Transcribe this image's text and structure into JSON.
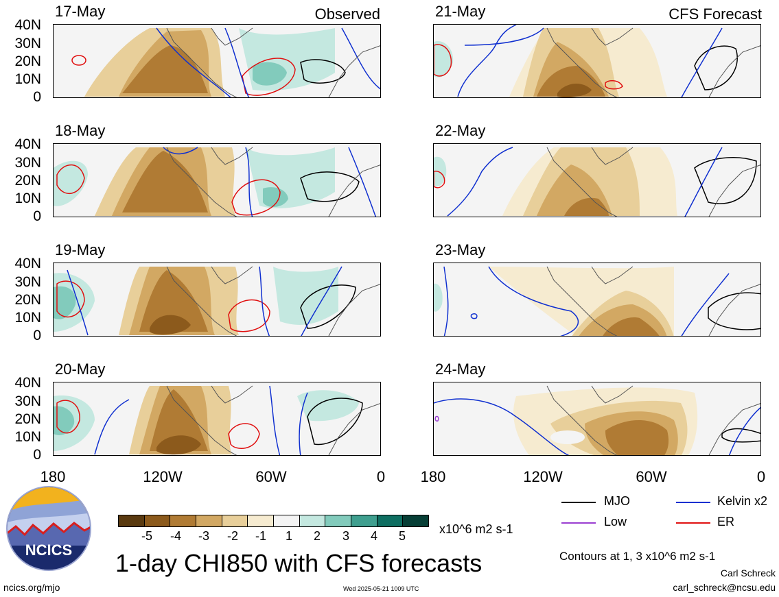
{
  "header": {
    "observed_label": "Observed",
    "forecast_label": "CFS Forecast"
  },
  "panels": {
    "observed": [
      "17-May",
      "18-May",
      "19-May",
      "20-May"
    ],
    "forecast": [
      "21-May",
      "22-May",
      "23-May",
      "24-May"
    ]
  },
  "axes": {
    "lat_ticks": [
      "40N",
      "30N",
      "20N",
      "10N",
      "0"
    ],
    "lon_ticks": [
      "180",
      "120W",
      "60W",
      "0"
    ]
  },
  "colorbar": {
    "labels": [
      "-5",
      "-4",
      "-3",
      "-2",
      "-1",
      "1",
      "2",
      "3",
      "4",
      "5"
    ],
    "colors": [
      "#5a3a10",
      "#8c5a1c",
      "#b07b34",
      "#d2a863",
      "#e8cf9a",
      "#f6ebd0",
      "#f4f4f4",
      "#c4e8e0",
      "#82cbbc",
      "#3f9f8f",
      "#0f6f62",
      "#073f36"
    ],
    "units": "x10^6 m2 s-1"
  },
  "legend": {
    "mjo": "MJO",
    "low": "Low",
    "kelvin": "Kelvin x2",
    "er": "ER",
    "colors": {
      "mjo": "#000000",
      "low": "#9b3fd1",
      "kelvin": "#1030d0",
      "er": "#e01010"
    }
  },
  "title": "1-day CHI850 with CFS forecasts",
  "contours_note": "Contours at 1, 3 x10^6 m2 s-1",
  "author": "Carl Schreck",
  "email": "carl_schreck@ncsu.edu",
  "site": "ncics.org/mjo",
  "timestamp": "Wed 2025-05-21 1009 UTC",
  "logo_text": "NCICS"
}
